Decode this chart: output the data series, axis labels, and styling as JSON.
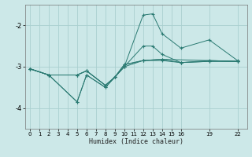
{
  "xlabel": "Humidex (Indice chaleur)",
  "bg_color": "#cce8e8",
  "grid_color": "#aad0d0",
  "line_color": "#2a7a72",
  "xticks": [
    0,
    1,
    2,
    3,
    4,
    5,
    6,
    7,
    8,
    9,
    10,
    11,
    12,
    13,
    14,
    15,
    16,
    19,
    22
  ],
  "yticks": [
    -4,
    -3,
    -2
  ],
  "xlim": [
    -0.5,
    23.0
  ],
  "ylim": [
    -4.5,
    -1.5
  ],
  "lines": [
    {
      "x": [
        0,
        2,
        5,
        6,
        8,
        9,
        10,
        12,
        13,
        14,
        16,
        19,
        22
      ],
      "y": [
        -3.05,
        -3.2,
        -3.85,
        -3.2,
        -3.5,
        -3.25,
        -3.0,
        -1.75,
        -1.72,
        -2.2,
        -2.55,
        -2.35,
        -2.85
      ]
    },
    {
      "x": [
        0,
        2,
        5,
        6,
        8,
        9,
        10,
        12,
        13,
        14,
        16,
        19,
        22
      ],
      "y": [
        -3.05,
        -3.2,
        -3.85,
        -3.2,
        -3.5,
        -3.25,
        -3.0,
        -2.5,
        -2.5,
        -2.7,
        -2.9,
        -2.85,
        -2.87
      ]
    },
    {
      "x": [
        0,
        2,
        5,
        6,
        8,
        9,
        10,
        12,
        14,
        16,
        19,
        22
      ],
      "y": [
        -3.05,
        -3.2,
        -3.2,
        -3.1,
        -3.45,
        -3.25,
        -3.0,
        -2.85,
        -2.85,
        -2.9,
        -2.87,
        -2.87
      ]
    },
    {
      "x": [
        0,
        2,
        5,
        6,
        8,
        9,
        10,
        12,
        14,
        16,
        19,
        22
      ],
      "y": [
        -3.05,
        -3.2,
        -3.2,
        -3.1,
        -3.45,
        -3.25,
        -2.95,
        -2.85,
        -2.82,
        -2.9,
        -2.87,
        -2.87
      ]
    },
    {
      "x": [
        0,
        2,
        5,
        6,
        8,
        9,
        10,
        12,
        14,
        22
      ],
      "y": [
        -3.05,
        -3.2,
        -3.2,
        -3.1,
        -3.45,
        -3.25,
        -2.95,
        -2.85,
        -2.82,
        -2.87
      ]
    }
  ]
}
